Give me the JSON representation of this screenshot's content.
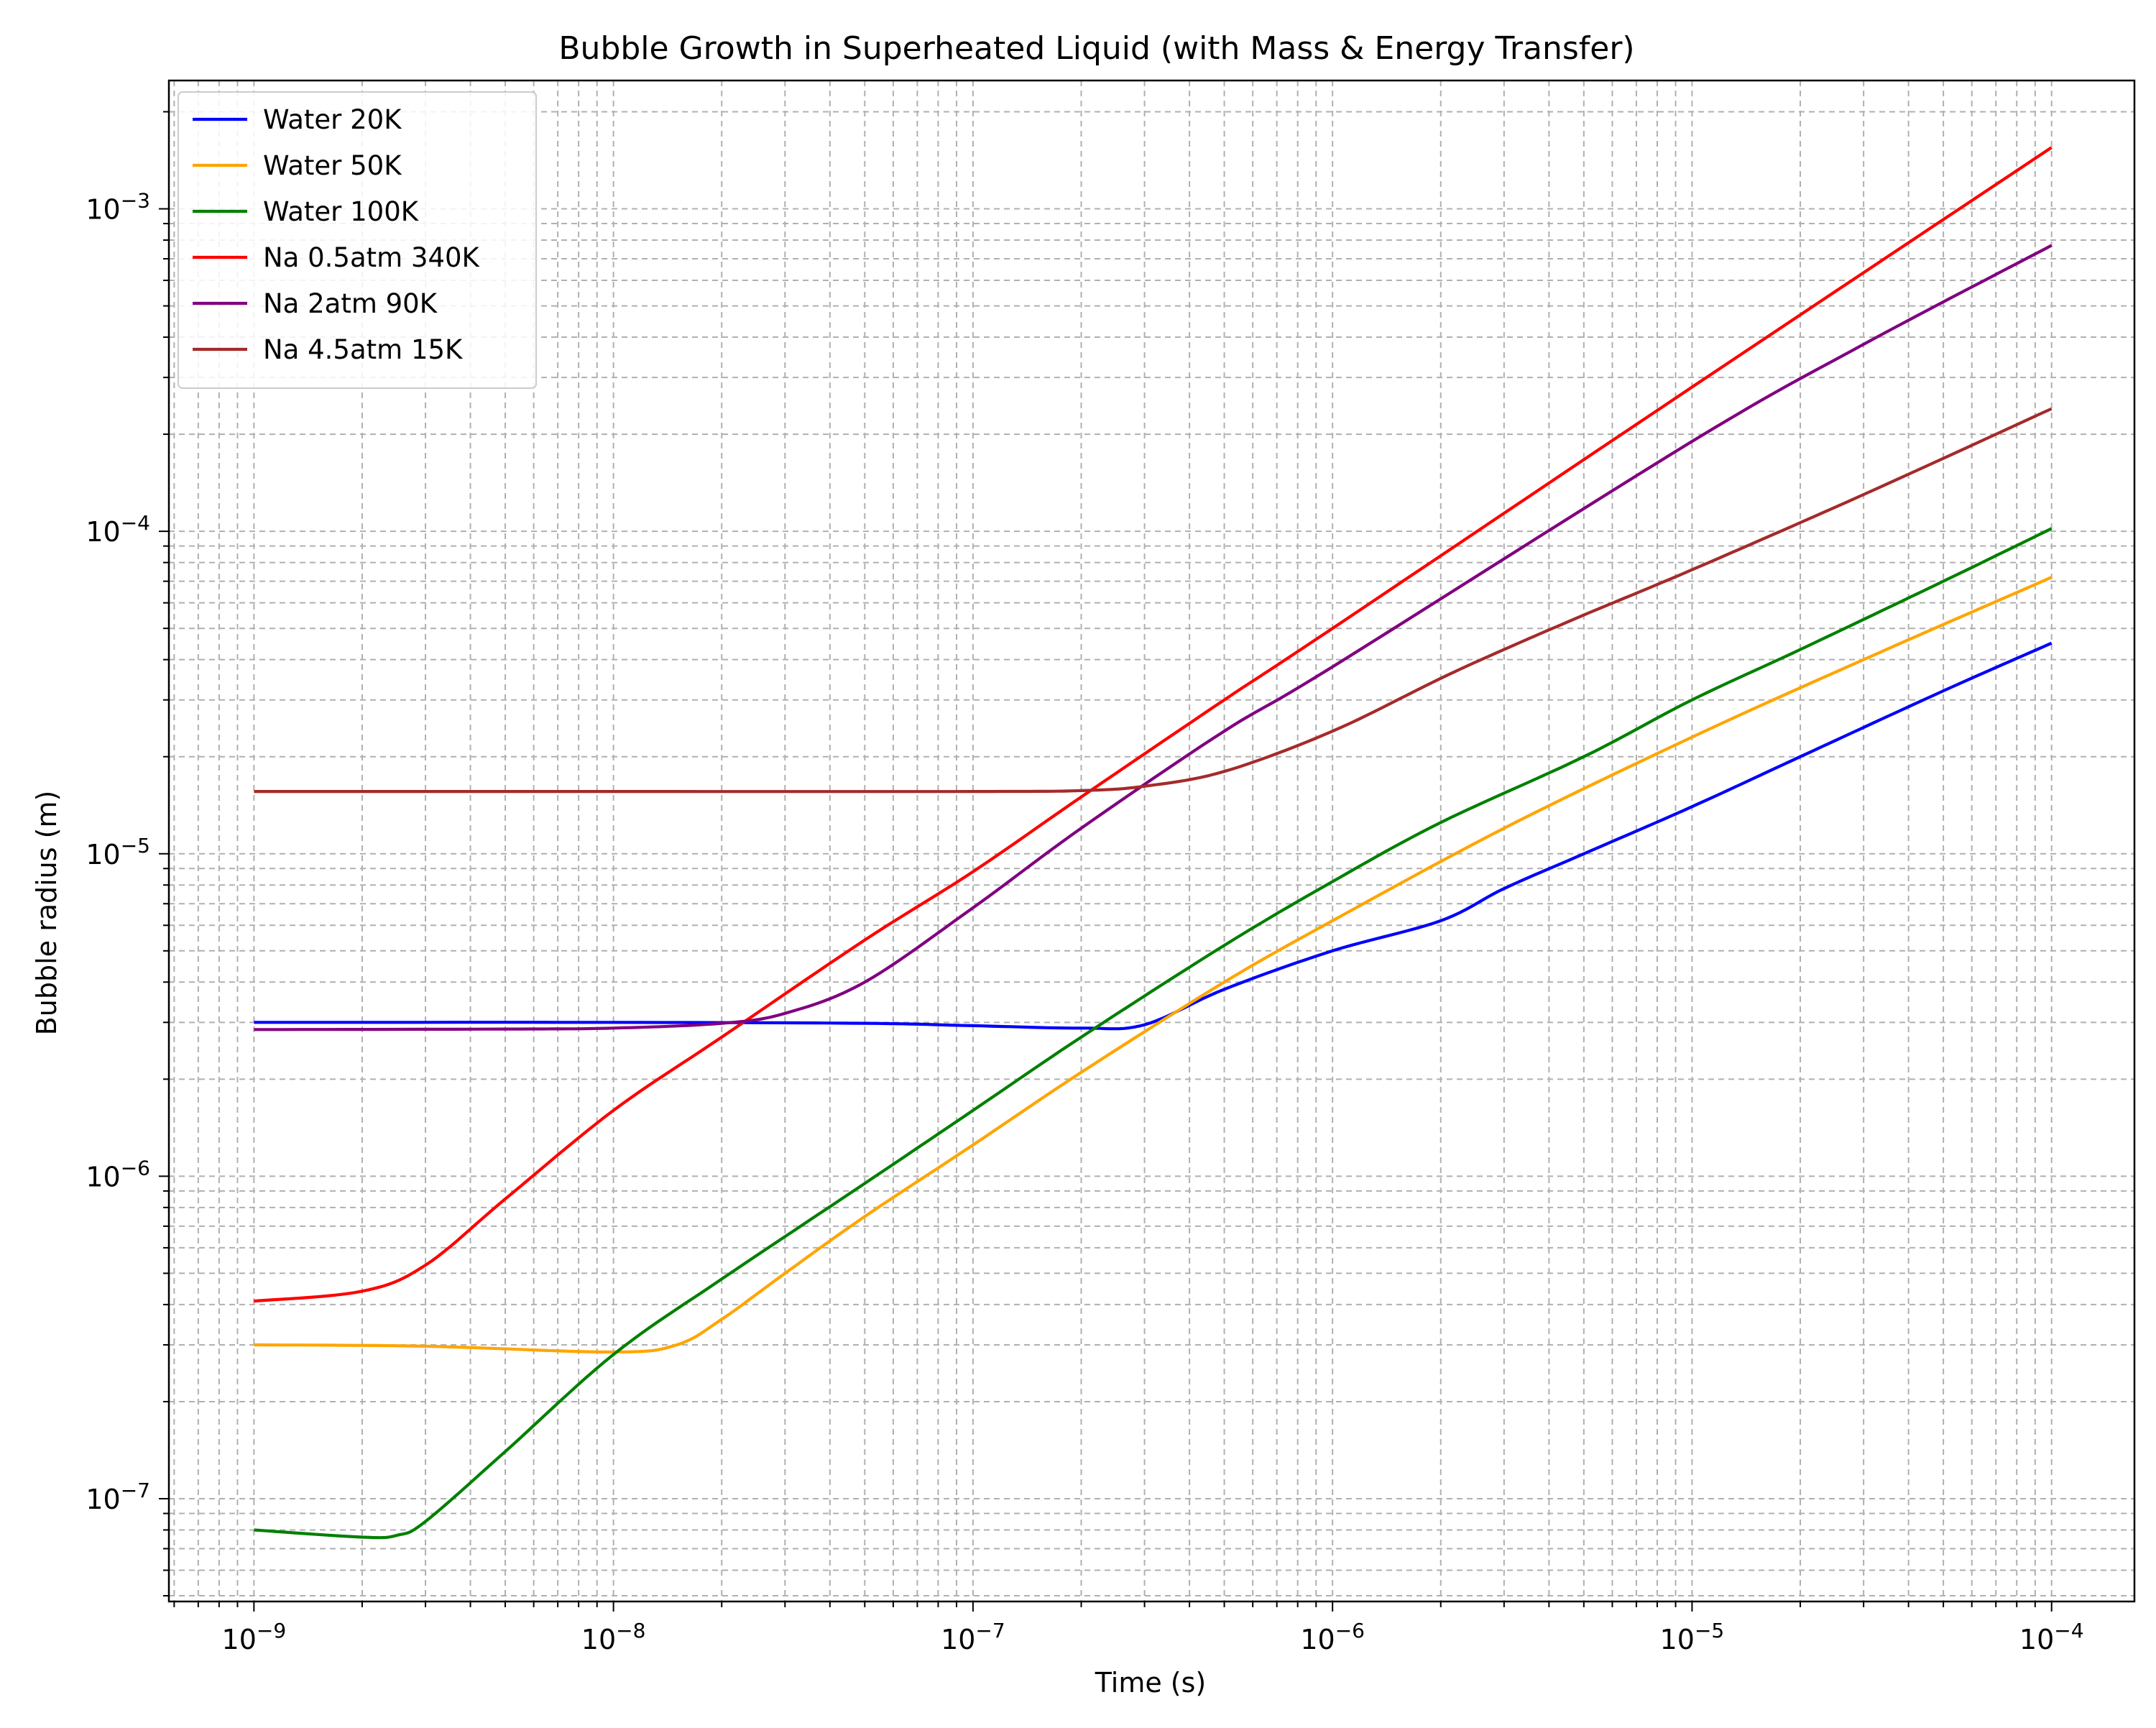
{
  "chart_data": {
    "type": "line",
    "title": "Bubble Growth in Superheated Liquid (with Mass & Energy Transfer)",
    "xlabel": "Time (s)",
    "ylabel": "Bubble radius (m)",
    "xscale": "log",
    "yscale": "log",
    "xlim": [
      5.8e-10,
      0.00017
    ],
    "ylim": [
      4.8e-08,
      0.0025
    ],
    "xticks": [
      {
        "value": 1e-09,
        "base": "10",
        "exp": "−9"
      },
      {
        "value": 1e-08,
        "base": "10",
        "exp": "−8"
      },
      {
        "value": 1e-07,
        "base": "10",
        "exp": "−7"
      },
      {
        "value": 1e-06,
        "base": "10",
        "exp": "−6"
      },
      {
        "value": 1e-05,
        "base": "10",
        "exp": "−5"
      },
      {
        "value": 0.0001,
        "base": "10",
        "exp": "−4"
      }
    ],
    "yticks": [
      {
        "value": 1e-07,
        "base": "10",
        "exp": "−7"
      },
      {
        "value": 1e-06,
        "base": "10",
        "exp": "−6"
      },
      {
        "value": 1e-05,
        "base": "10",
        "exp": "−5"
      },
      {
        "value": 0.0001,
        "base": "10",
        "exp": "−4"
      },
      {
        "value": 0.001,
        "base": "10",
        "exp": "−3"
      }
    ],
    "grid": "major and minor, dashed",
    "legend_position": "upper-left",
    "series": [
      {
        "name": "Water 20K",
        "color": "#0000ff",
        "x": [
          1e-09,
          1e-08,
          5e-08,
          1e-07,
          2e-07,
          3e-07,
          5e-07,
          1e-06,
          2e-06,
          3e-06,
          5e-06,
          1e-05,
          2e-05,
          5e-05,
          0.0001
        ],
        "y": [
          3e-06,
          3e-06,
          2.98e-06,
          2.93e-06,
          2.88e-06,
          2.95e-06,
          3.8e-06,
          5e-06,
          6.2e-06,
          7.8e-06,
          1e-05,
          1.4e-05,
          2e-05,
          3.2e-05,
          4.5e-05
        ]
      },
      {
        "name": "Water 50K",
        "color": "#ffa500",
        "x": [
          1e-09,
          3e-09,
          1e-08,
          1.5e-08,
          2e-08,
          3e-08,
          5e-08,
          1e-07,
          2e-07,
          5e-07,
          1e-06,
          3e-06,
          1e-05,
          3e-05,
          0.0001
        ],
        "y": [
          3e-07,
          2.97e-07,
          2.85e-07,
          3e-07,
          3.6e-07,
          5e-07,
          7.5e-07,
          1.25e-06,
          2.1e-06,
          4e-06,
          6.2e-06,
          1.2e-05,
          2.3e-05,
          4e-05,
          7.2e-05
        ]
      },
      {
        "name": "Water 100K",
        "color": "#008000",
        "x": [
          1e-09,
          2e-09,
          2.5e-09,
          3e-09,
          5e-09,
          1e-08,
          2e-08,
          5e-08,
          1e-07,
          2e-07,
          5e-07,
          1e-06,
          2e-06,
          5e-06,
          1e-05,
          2e-05,
          5e-05,
          0.0001
        ],
        "y": [
          8e-08,
          7.6e-08,
          7.7e-08,
          8.5e-08,
          1.4e-07,
          2.8e-07,
          4.8e-07,
          9.5e-07,
          1.6e-06,
          2.7e-06,
          5.2e-06,
          8.2e-06,
          1.25e-05,
          2e-05,
          3e-05,
          4.3e-05,
          7e-05,
          0.000102
        ]
      },
      {
        "name": "Na 0.5atm 340K",
        "color": "#ff0000",
        "x": [
          1e-09,
          2e-09,
          3e-09,
          5e-09,
          1e-08,
          2e-08,
          5e-08,
          1e-07,
          2e-07,
          5e-07,
          1e-06,
          1e-05,
          0.0001
        ],
        "y": [
          4.1e-07,
          4.4e-07,
          5.3e-07,
          8.5e-07,
          1.6e-06,
          2.7e-06,
          5.4e-06,
          8.8e-06,
          1.5e-05,
          3e-05,
          5e-05,
          0.00028,
          0.00155
        ]
      },
      {
        "name": "Na 2atm 90K",
        "color": "#800080",
        "x": [
          1e-09,
          5e-09,
          1e-08,
          2e-08,
          3e-08,
          5e-08,
          1e-07,
          2e-07,
          5e-07,
          1e-06,
          1e-05,
          3e-05,
          0.0001
        ],
        "y": [
          2.85e-06,
          2.86e-06,
          2.88e-06,
          2.98e-06,
          3.2e-06,
          4e-06,
          6.8e-06,
          1.2e-05,
          2.4e-05,
          3.8e-05,
          0.00019,
          0.00038,
          0.00077
        ]
      },
      {
        "name": "Na 4.5atm 15K",
        "color": "#a52a2a",
        "x": [
          1e-09,
          1e-08,
          1e-07,
          2e-07,
          3e-07,
          5e-07,
          1e-06,
          2e-06,
          3e-06,
          5e-06,
          1e-05,
          3e-05,
          0.0001
        ],
        "y": [
          1.56e-05,
          1.56e-05,
          1.56e-05,
          1.57e-05,
          1.62e-05,
          1.8e-05,
          2.4e-05,
          3.5e-05,
          4.3e-05,
          5.5e-05,
          7.6e-05,
          0.00013,
          0.00024
        ]
      }
    ]
  }
}
